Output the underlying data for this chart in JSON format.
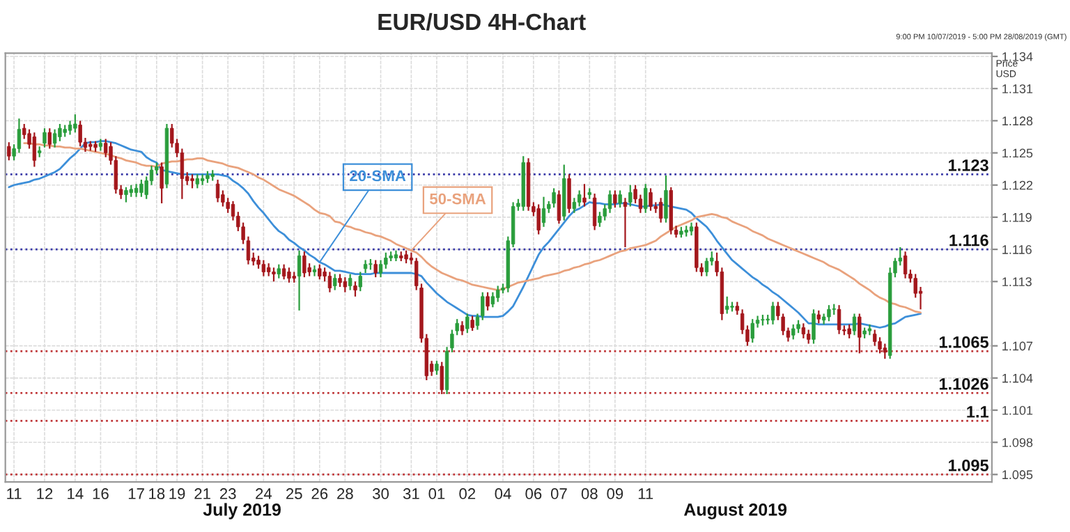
{
  "chart_data": {
    "type": "candlestick",
    "title": "EUR/USD 4H-Chart",
    "subtitle": "9:00 PM 10/07/2019 - 5:00 PM 28/08/2019 (GMT)",
    "ylabel": "Price\nUSD",
    "categories": [
      null,
      "11",
      null,
      null,
      null,
      null,
      null,
      "12",
      null,
      null,
      null,
      null,
      null,
      "14",
      null,
      null,
      null,
      null,
      "16",
      null,
      null,
      null,
      null,
      null,
      null,
      "17",
      null,
      null,
      null,
      "18",
      null,
      null,
      null,
      "19",
      null,
      null,
      null,
      null,
      "21",
      null,
      null,
      null,
      null,
      "23",
      null,
      null,
      null,
      null,
      null,
      null,
      "24",
      null,
      null,
      null,
      null,
      null,
      "25",
      null,
      null,
      null,
      null,
      "26",
      null,
      null,
      null,
      null,
      "28",
      null,
      null,
      null,
      null,
      null,
      null,
      "30",
      null,
      null,
      null,
      null,
      null,
      "31",
      null,
      null,
      null,
      null,
      "01",
      null,
      null,
      null,
      null,
      null,
      "02",
      null,
      null,
      null,
      null,
      null,
      null,
      "04",
      null,
      null,
      null,
      null,
      null,
      "06",
      null,
      null,
      null,
      null,
      "07",
      null,
      null,
      null,
      null,
      null,
      "08",
      null,
      null,
      null,
      null,
      "09",
      null,
      null,
      null,
      null,
      null,
      "11",
      null,
      null,
      null,
      null,
      null,
      null,
      null,
      null,
      null,
      null,
      null,
      null,
      null,
      null,
      null,
      null,
      null,
      null,
      null,
      null,
      null,
      null,
      null,
      null,
      null,
      null,
      null,
      null,
      null,
      null,
      null,
      null,
      null,
      null,
      null,
      null,
      null,
      null,
      null,
      null,
      null,
      null,
      null,
      null,
      null,
      null,
      null,
      null,
      null,
      null,
      null,
      null,
      null,
      null
    ],
    "ohlc": [
      [
        1.1256,
        1.126,
        1.1243,
        1.1247
      ],
      [
        1.1247,
        1.1258,
        1.1243,
        1.1254
      ],
      [
        1.1254,
        1.1282,
        1.125,
        1.1272
      ],
      [
        1.1273,
        1.1277,
        1.1263,
        1.1267
      ],
      [
        1.1268,
        1.1272,
        1.1254,
        1.1258
      ],
      [
        1.1265,
        1.1269,
        1.1237,
        1.1243
      ],
      [
        1.125,
        1.1256,
        1.1246,
        1.1252
      ],
      [
        1.1259,
        1.1273,
        1.1255,
        1.1269
      ],
      [
        1.1269,
        1.1273,
        1.1254,
        1.1258
      ],
      [
        1.1259,
        1.1272,
        1.1255,
        1.1268
      ],
      [
        1.1265,
        1.1277,
        1.1261,
        1.1273
      ],
      [
        1.1269,
        1.1276,
        1.1265,
        1.1272
      ],
      [
        1.1271,
        1.128,
        1.1267,
        1.1276
      ],
      [
        1.1273,
        1.1286,
        1.1269,
        1.1277
      ],
      [
        1.1276,
        1.128,
        1.1256,
        1.126
      ],
      [
        1.126,
        1.1264,
        1.1251,
        1.1255
      ],
      [
        1.1258,
        1.1261,
        1.1252,
        1.1256
      ],
      [
        1.1258,
        1.1261,
        1.1251,
        1.1255
      ],
      [
        1.1256,
        1.1263,
        1.1252,
        1.1259
      ],
      [
        1.1259,
        1.1263,
        1.1246,
        1.125
      ],
      [
        1.1256,
        1.126,
        1.1239,
        1.1243
      ],
      [
        1.1243,
        1.1247,
        1.1212,
        1.1216
      ],
      [
        1.1216,
        1.122,
        1.1207,
        1.1211
      ],
      [
        1.1211,
        1.1218,
        1.1204,
        1.1215
      ],
      [
        1.1213,
        1.122,
        1.1209,
        1.1216
      ],
      [
        1.1213,
        1.1221,
        1.1209,
        1.1217
      ],
      [
        1.1213,
        1.1225,
        1.1209,
        1.1221
      ],
      [
        1.1211,
        1.1228,
        1.1207,
        1.1224
      ],
      [
        1.1224,
        1.1238,
        1.122,
        1.1234
      ],
      [
        1.1234,
        1.1241,
        1.123,
        1.1237
      ],
      [
        1.1237,
        1.1241,
        1.1203,
        1.1217
      ],
      [
        1.1221,
        1.1277,
        1.1217,
        1.1273
      ],
      [
        1.1273,
        1.1277,
        1.1255,
        1.1259
      ],
      [
        1.1259,
        1.1263,
        1.1246,
        1.125
      ],
      [
        1.125,
        1.1254,
        1.1207,
        1.1226
      ],
      [
        1.1228,
        1.1232,
        1.122,
        1.1224
      ],
      [
        1.1226,
        1.123,
        1.1217,
        1.1224
      ],
      [
        1.1221,
        1.123,
        1.1217,
        1.1226
      ],
      [
        1.1224,
        1.123,
        1.122,
        1.1226
      ],
      [
        1.1226,
        1.1233,
        1.1222,
        1.1229
      ],
      [
        1.1228,
        1.1234,
        1.1224,
        1.123
      ],
      [
        1.1221,
        1.1225,
        1.1204,
        1.1208
      ],
      [
        1.1211,
        1.1215,
        1.12,
        1.1204
      ],
      [
        1.1204,
        1.1208,
        1.1194,
        1.1198
      ],
      [
        1.1202,
        1.1205,
        1.1187,
        1.1191
      ],
      [
        1.1191,
        1.1195,
        1.1177,
        1.1181
      ],
      [
        1.1181,
        1.1185,
        1.1165,
        1.1169
      ],
      [
        1.1168,
        1.1172,
        1.1146,
        1.115
      ],
      [
        1.1152,
        1.1157,
        1.1145,
        1.1149
      ],
      [
        1.115,
        1.1154,
        1.1142,
        1.1146
      ],
      [
        1.1146,
        1.115,
        1.1135,
        1.1139
      ],
      [
        1.1143,
        1.1147,
        1.1135,
        1.1139
      ],
      [
        1.1139,
        1.1143,
        1.113,
        1.1137
      ],
      [
        1.1137,
        1.1146,
        1.1133,
        1.1142
      ],
      [
        1.1142,
        1.1146,
        1.1132,
        1.1135
      ],
      [
        1.1139,
        1.1143,
        1.1129,
        1.1133
      ],
      [
        1.1135,
        1.1139,
        1.1129,
        1.1133
      ],
      [
        1.1135,
        1.1159,
        1.1103,
        1.1154
      ],
      [
        1.1154,
        1.1158,
        1.1134,
        1.1138
      ],
      [
        1.1143,
        1.1147,
        1.1135,
        1.1139
      ],
      [
        1.1139,
        1.1145,
        1.1135,
        1.1141
      ],
      [
        1.1142,
        1.1146,
        1.1132,
        1.1135
      ],
      [
        1.1139,
        1.1143,
        1.113,
        1.1135
      ],
      [
        1.1135,
        1.1139,
        1.112,
        1.1124
      ],
      [
        1.1126,
        1.1137,
        1.1122,
        1.1133
      ],
      [
        1.1133,
        1.1137,
        1.1125,
        1.1129
      ],
      [
        1.113,
        1.1134,
        1.112,
        1.1125
      ],
      [
        1.1126,
        1.1137,
        1.1122,
        1.1133
      ],
      [
        1.1126,
        1.113,
        1.1116,
        1.1122
      ],
      [
        1.1125,
        1.1139,
        1.1121,
        1.1135
      ],
      [
        1.1142,
        1.115,
        1.1138,
        1.1146
      ],
      [
        1.1146,
        1.1151,
        1.1141,
        1.1146
      ],
      [
        1.1146,
        1.115,
        1.1134,
        1.1138
      ],
      [
        1.1138,
        1.115,
        1.1134,
        1.1146
      ],
      [
        1.1146,
        1.1157,
        1.1142,
        1.1152
      ],
      [
        1.1152,
        1.1158,
        1.1149,
        1.1154
      ],
      [
        1.1152,
        1.1159,
        1.1149,
        1.1155
      ],
      [
        1.1154,
        1.1158,
        1.1149,
        1.1152
      ],
      [
        1.1155,
        1.1159,
        1.1147,
        1.1151
      ],
      [
        1.1152,
        1.1157,
        1.1146,
        1.115
      ],
      [
        1.1149,
        1.1152,
        1.1122,
        1.1126
      ],
      [
        1.1124,
        1.1128,
        1.1073,
        1.1077
      ],
      [
        1.1077,
        1.1081,
        1.1038,
        1.1042
      ],
      [
        1.1053,
        1.1056,
        1.1042,
        1.1046
      ],
      [
        1.1047,
        1.1056,
        1.1043,
        1.1053
      ],
      [
        1.1051,
        1.1055,
        1.1025,
        1.1029
      ],
      [
        1.1029,
        1.1069,
        1.1025,
        1.1065
      ],
      [
        1.1068,
        1.1085,
        1.1064,
        1.1081
      ],
      [
        1.1084,
        1.1095,
        1.108,
        1.1091
      ],
      [
        1.1089,
        1.1093,
        1.108,
        1.1084
      ],
      [
        1.1086,
        1.11,
        1.1082,
        1.1097
      ],
      [
        1.1094,
        1.1098,
        1.1084,
        1.1087
      ],
      [
        1.1089,
        1.11,
        1.1085,
        1.1097
      ],
      [
        1.1098,
        1.112,
        1.1094,
        1.1116
      ],
      [
        1.1116,
        1.112,
        1.1103,
        1.1107
      ],
      [
        1.1109,
        1.112,
        1.1106,
        1.1116
      ],
      [
        1.1115,
        1.1126,
        1.1111,
        1.1122
      ],
      [
        1.1122,
        1.1128,
        1.1119,
        1.1124
      ],
      [
        1.1124,
        1.1172,
        1.112,
        1.1168
      ],
      [
        1.1165,
        1.1204,
        1.1162,
        1.12
      ],
      [
        1.12,
        1.1207,
        1.1196,
        1.1203
      ],
      [
        1.12,
        1.1247,
        1.1196,
        1.1241
      ],
      [
        1.1241,
        1.1245,
        1.1196,
        1.12
      ],
      [
        1.12,
        1.1204,
        1.1191,
        1.1195
      ],
      [
        1.1198,
        1.1202,
        1.1174,
        1.1178
      ],
      [
        1.1185,
        1.1209,
        1.1181,
        1.1198
      ],
      [
        1.1198,
        1.1205,
        1.1194,
        1.1202
      ],
      [
        1.1203,
        1.1217,
        1.1199,
        1.1213
      ],
      [
        1.1211,
        1.1215,
        1.1184,
        1.1187
      ],
      [
        1.1191,
        1.1239,
        1.1187,
        1.1226
      ],
      [
        1.1226,
        1.123,
        1.1194,
        1.1198
      ],
      [
        1.1198,
        1.1208,
        1.1194,
        1.1204
      ],
      [
        1.1204,
        1.1215,
        1.12,
        1.1211
      ],
      [
        1.1208,
        1.1221,
        1.12,
        1.1204
      ],
      [
        1.1211,
        1.1217,
        1.1207,
        1.1213
      ],
      [
        1.1208,
        1.1212,
        1.1178,
        1.1182
      ],
      [
        1.1185,
        1.1195,
        1.1181,
        1.1191
      ],
      [
        1.1191,
        1.1202,
        1.1187,
        1.1198
      ],
      [
        1.1198,
        1.1215,
        1.1194,
        1.1211
      ],
      [
        1.1211,
        1.1215,
        1.1199,
        1.1203
      ],
      [
        1.1203,
        1.1215,
        1.1199,
        1.1211
      ],
      [
        1.1204,
        1.1208,
        1.1162,
        1.12
      ],
      [
        1.1204,
        1.122,
        1.12,
        1.1213
      ],
      [
        1.1216,
        1.122,
        1.1203,
        1.1207
      ],
      [
        1.1207,
        1.1211,
        1.1194,
        1.1198
      ],
      [
        1.1198,
        1.1221,
        1.1194,
        1.1217
      ],
      [
        1.1213,
        1.1217,
        1.1196,
        1.12
      ],
      [
        1.12,
        1.1204,
        1.1194,
        1.1198
      ],
      [
        1.1204,
        1.1208,
        1.1185,
        1.1189
      ],
      [
        1.1189,
        1.1229,
        1.1185,
        1.1215
      ],
      [
        1.1215,
        1.1218,
        1.1174,
        1.1178
      ],
      [
        1.1178,
        1.1182,
        1.1171,
        1.1174
      ],
      [
        1.1174,
        1.1181,
        1.1171,
        1.1177
      ],
      [
        1.1176,
        1.1182,
        1.1172,
        1.1178
      ],
      [
        1.1177,
        1.1185,
        1.1173,
        1.1181
      ],
      [
        1.1181,
        1.1185,
        1.1139,
        1.1143
      ],
      [
        1.1143,
        1.1147,
        1.1135,
        1.1139
      ],
      [
        1.1139,
        1.1152,
        1.1135,
        1.1149
      ],
      [
        1.1149,
        1.1158,
        1.1145,
        1.1152
      ],
      [
        1.1149,
        1.1157,
        1.1135,
        1.1139
      ],
      [
        1.1139,
        1.1143,
        1.1094,
        1.11
      ],
      [
        1.1104,
        1.1116,
        1.11,
        1.1107
      ],
      [
        1.1106,
        1.1111,
        1.1102,
        1.1107
      ],
      [
        1.1107,
        1.1111,
        1.1099,
        1.1103
      ],
      [
        1.11,
        1.1104,
        1.1081,
        1.1085
      ],
      [
        1.1085,
        1.1089,
        1.107,
        1.1074
      ],
      [
        1.1077,
        1.1095,
        1.1073,
        1.1091
      ],
      [
        1.1091,
        1.1098,
        1.1087,
        1.1094
      ],
      [
        1.1094,
        1.1099,
        1.1089,
        1.1094
      ],
      [
        1.1094,
        1.1099,
        1.109,
        1.1095
      ],
      [
        1.1094,
        1.1111,
        1.109,
        1.1107
      ],
      [
        1.1107,
        1.1111,
        1.1094,
        1.1098
      ],
      [
        1.1097,
        1.11,
        1.108,
        1.1084
      ],
      [
        1.1084,
        1.1087,
        1.1074,
        1.1078
      ],
      [
        1.108,
        1.109,
        1.1076,
        1.1086
      ],
      [
        1.1086,
        1.1094,
        1.1082,
        1.109
      ],
      [
        1.1087,
        1.1091,
        1.1077,
        1.1081
      ],
      [
        1.1081,
        1.1085,
        1.1072,
        1.1076
      ],
      [
        1.1076,
        1.1104,
        1.1072,
        1.11
      ],
      [
        1.1099,
        1.1103,
        1.1091,
        1.1095
      ],
      [
        1.1094,
        1.11,
        1.109,
        1.1097
      ],
      [
        1.1097,
        1.1108,
        1.1093,
        1.1104
      ],
      [
        1.1104,
        1.1109,
        1.1099,
        1.1104
      ],
      [
        1.1104,
        1.1108,
        1.1081,
        1.1085
      ],
      [
        1.1085,
        1.1089,
        1.108,
        1.1084
      ],
      [
        1.1086,
        1.109,
        1.1077,
        1.1081
      ],
      [
        1.1084,
        1.11,
        1.108,
        1.1097
      ],
      [
        1.1097,
        1.11,
        1.1063,
        1.1078
      ],
      [
        1.1081,
        1.1087,
        1.1077,
        1.1084
      ],
      [
        1.1084,
        1.109,
        1.108,
        1.1086
      ],
      [
        1.1081,
        1.1085,
        1.107,
        1.1074
      ],
      [
        1.1074,
        1.1078,
        1.1063,
        1.1067
      ],
      [
        1.1068,
        1.1072,
        1.1058,
        1.1064
      ],
      [
        1.1061,
        1.1143,
        1.1058,
        1.1138
      ],
      [
        1.1138,
        1.1152,
        1.1134,
        1.1149
      ],
      [
        1.1149,
        1.1162,
        1.1145,
        1.1152
      ],
      [
        1.1154,
        1.1158,
        1.1133,
        1.1137
      ],
      [
        1.1137,
        1.1141,
        1.1129,
        1.1133
      ],
      [
        1.1133,
        1.1137,
        1.1115,
        1.1119
      ],
      [
        1.1121,
        1.1125,
        1.1104,
        1.1119
      ]
    ],
    "colors": [
      "#a3171c",
      "#2a9d3c",
      "#2a9d3c",
      "#a3171c",
      "#a3171c",
      "#a3171c",
      "#2a9d3c",
      "#2a9d3c",
      "#a3171c",
      "#2a9d3c",
      "#2a9d3c",
      "#2a9d3c",
      "#2a9d3c",
      "#2a9d3c",
      "#a3171c",
      "#a3171c",
      "#a3171c",
      "#a3171c",
      "#2a9d3c",
      "#a3171c",
      "#a3171c",
      "#a3171c",
      "#a3171c",
      "#2a9d3c",
      "#2a9d3c",
      "#2a9d3c",
      "#2a9d3c",
      "#2a9d3c",
      "#2a9d3c",
      "#2a9d3c",
      "#a3171c",
      "#2a9d3c",
      "#a3171c",
      "#a3171c",
      "#a3171c",
      "#a3171c",
      "#a3171c",
      "#2a9d3c",
      "#2a9d3c",
      "#2a9d3c",
      "#2a9d3c",
      "#a3171c",
      "#a3171c",
      "#a3171c",
      "#a3171c",
      "#a3171c",
      "#a3171c",
      "#a3171c",
      "#a3171c",
      "#a3171c",
      "#a3171c",
      "#a3171c",
      "#a3171c",
      "#2a9d3c",
      "#a3171c",
      "#a3171c",
      "#a3171c",
      "#2a9d3c",
      "#a3171c",
      "#a3171c",
      "#2a9d3c",
      "#a3171c",
      "#a3171c",
      "#a3171c",
      "#2a9d3c",
      "#a3171c",
      "#a3171c",
      "#2a9d3c",
      "#a3171c",
      "#2a9d3c",
      "#2a9d3c",
      "#2a9d3c",
      "#a3171c",
      "#2a9d3c",
      "#2a9d3c",
      "#2a9d3c",
      "#2a9d3c",
      "#a3171c",
      "#a3171c",
      "#a3171c",
      "#a3171c",
      "#a3171c",
      "#a3171c",
      "#a3171c",
      "#2a9d3c",
      "#a3171c",
      "#2a9d3c",
      "#2a9d3c",
      "#2a9d3c",
      "#a3171c",
      "#2a9d3c",
      "#a3171c",
      "#2a9d3c",
      "#2a9d3c",
      "#a3171c",
      "#2a9d3c",
      "#2a9d3c",
      "#2a9d3c",
      "#2a9d3c",
      "#2a9d3c",
      "#2a9d3c",
      "#2a9d3c",
      "#a3171c",
      "#a3171c",
      "#a3171c",
      "#2a9d3c",
      "#2a9d3c",
      "#2a9d3c",
      "#a3171c",
      "#2a9d3c",
      "#a3171c",
      "#2a9d3c",
      "#2a9d3c",
      "#a3171c",
      "#2a9d3c",
      "#a3171c",
      "#2a9d3c",
      "#2a9d3c",
      "#2a9d3c",
      "#a3171c",
      "#2a9d3c",
      "#a3171c",
      "#2a9d3c",
      "#a3171c",
      "#a3171c",
      "#2a9d3c",
      "#a3171c",
      "#a3171c",
      "#a3171c",
      "#2a9d3c",
      "#a3171c",
      "#a3171c",
      "#2a9d3c",
      "#2a9d3c",
      "#2a9d3c",
      "#a3171c",
      "#a3171c",
      "#2a9d3c",
      "#2a9d3c",
      "#a3171c",
      "#a3171c",
      "#2a9d3c",
      "#2a9d3c",
      "#a3171c",
      "#a3171c",
      "#a3171c",
      "#2a9d3c",
      "#2a9d3c",
      "#2a9d3c",
      "#2a9d3c",
      "#2a9d3c",
      "#a3171c",
      "#a3171c",
      "#a3171c",
      "#2a9d3c",
      "#2a9d3c",
      "#a3171c",
      "#a3171c",
      "#2a9d3c",
      "#a3171c",
      "#2a9d3c",
      "#2a9d3c",
      "#2a9d3c",
      "#a3171c",
      "#a3171c",
      "#a3171c",
      "#2a9d3c",
      "#a3171c",
      "#2a9d3c",
      "#2a9d3c",
      "#a3171c",
      "#a3171c",
      "#a3171c",
      "#2a9d3c",
      "#2a9d3c",
      "#2a9d3c",
      "#a3171c",
      "#a3171c",
      "#a3171c",
      "#a3171c"
    ],
    "series": [
      {
        "type": "line",
        "name": "20-SMA",
        "color": "#3d8fd9",
        "values": [
          1.1218,
          1.122,
          1.1221,
          1.1222,
          1.1223,
          1.1225,
          1.1226,
          1.1228,
          1.123,
          1.1232,
          1.1235,
          1.124,
          1.1245,
          1.1249,
          1.1254,
          1.1259,
          1.126,
          1.126,
          1.1261,
          1.1261,
          1.126,
          1.1259,
          1.1257,
          1.1255,
          1.1253,
          1.1252,
          1.1251,
          1.1246,
          1.1243,
          1.1241,
          1.1234,
          1.1233,
          1.1232,
          1.1231,
          1.123,
          1.123,
          1.123,
          1.123,
          1.123,
          1.123,
          1.123,
          1.123,
          1.1229,
          1.1228,
          1.1224,
          1.1221,
          1.1217,
          1.1212,
          1.1205,
          1.1199,
          1.1194,
          1.1188,
          1.1182,
          1.1177,
          1.1174,
          1.1169,
          1.1166,
          1.1162,
          1.1159,
          1.1155,
          1.1152,
          1.1148,
          1.1146,
          1.1143,
          1.114,
          1.114,
          1.1139,
          1.1138,
          1.1137,
          1.1137,
          1.1137,
          1.1137,
          1.1138,
          1.1138,
          1.1138,
          1.1138,
          1.1138,
          1.1138,
          1.1138,
          1.1138,
          1.1137,
          1.1135,
          1.1129,
          1.1124,
          1.1119,
          1.1115,
          1.1111,
          1.1108,
          1.1105,
          1.1102,
          1.1099,
          1.1098,
          1.1098,
          1.1097,
          1.1097,
          1.1097,
          1.1097,
          1.1098,
          1.1102,
          1.1107,
          1.1116,
          1.1125,
          1.1135,
          1.1145,
          1.1155,
          1.1162,
          1.1167,
          1.1173,
          1.1179,
          1.1185,
          1.1191,
          1.1196,
          1.1198,
          1.1201,
          1.1204,
          1.1203,
          1.1203,
          1.1202,
          1.1202,
          1.1202,
          1.1203,
          1.1203,
          1.1202,
          1.1201,
          1.12,
          1.12,
          1.1201,
          1.1201,
          1.1202,
          1.1201,
          1.12,
          1.1199,
          1.1198,
          1.1197,
          1.1194,
          1.1189,
          1.1185,
          1.1181,
          1.1175,
          1.1168,
          1.1162,
          1.1156,
          1.115,
          1.1146,
          1.1142,
          1.1138,
          1.1134,
          1.1131,
          1.1127,
          1.1124,
          1.112,
          1.1117,
          1.1113,
          1.1109,
          1.1105,
          1.1101,
          1.1096,
          1.1091,
          1.1091,
          1.109,
          1.109,
          1.109,
          1.109,
          1.109,
          1.109,
          1.109,
          1.109,
          1.1091,
          1.109,
          1.1089,
          1.1088,
          1.1087,
          1.1088,
          1.109,
          1.1091,
          1.1094,
          1.1097,
          1.1098,
          1.1099,
          1.11
        ]
      },
      {
        "type": "line",
        "name": "50-SMA",
        "color": "#e9a27d",
        "values": [
          null,
          null,
          null,
          1.1259,
          1.1259,
          1.1258,
          1.1258,
          1.1257,
          1.1257,
          1.1256,
          1.1256,
          1.1255,
          1.1255,
          1.1254,
          1.1254,
          1.1253,
          1.1252,
          1.1251,
          1.125,
          1.1249,
          1.1248,
          1.1246,
          1.1245,
          1.1243,
          1.1242,
          1.1241,
          1.1239,
          1.1238,
          1.1238,
          1.1237,
          1.124,
          1.1241,
          1.1242,
          1.1242,
          1.1243,
          1.1244,
          1.1244,
          1.1245,
          1.1245,
          1.1243,
          1.1242,
          1.1241,
          1.124,
          1.1238,
          1.1237,
          1.1236,
          1.1234,
          1.1232,
          1.123,
          1.1227,
          1.1225,
          1.1222,
          1.1219,
          1.1216,
          1.1214,
          1.1212,
          1.121,
          1.1207,
          1.1204,
          1.1201,
          1.1197,
          1.1194,
          1.1193,
          1.1191,
          1.1186,
          1.1185,
          1.1182,
          1.1181,
          1.1179,
          1.1178,
          1.1176,
          1.1175,
          1.1173,
          1.1172,
          1.117,
          1.1168,
          1.1165,
          1.1163,
          1.1161,
          1.1159,
          1.1157,
          1.1153,
          1.1148,
          1.1144,
          1.1141,
          1.1138,
          1.1136,
          1.1134,
          1.1132,
          1.1131,
          1.1129,
          1.1127,
          1.1126,
          1.1125,
          1.1124,
          1.1123,
          1.1122,
          1.1123,
          1.1125,
          1.1127,
          1.1129,
          1.113,
          1.1131,
          1.1132,
          1.1133,
          1.1135,
          1.1136,
          1.1137,
          1.1138,
          1.114,
          1.1141,
          1.1143,
          1.1144,
          1.1146,
          1.1147,
          1.1149,
          1.115,
          1.1152,
          1.1154,
          1.1156,
          1.1158,
          1.1159,
          1.1161,
          1.1162,
          1.1163,
          1.1164,
          1.1166,
          1.1168,
          1.1172,
          1.1175,
          1.1178,
          1.1181,
          1.1183,
          1.1185,
          1.1187,
          1.119,
          1.1191,
          1.1192,
          1.1193,
          1.1192,
          1.119,
          1.1189,
          1.1186,
          1.1184,
          1.1182,
          1.118,
          1.1177,
          1.1175,
          1.1173,
          1.117,
          1.1168,
          1.1166,
          1.1164,
          1.1162,
          1.116,
          1.1158,
          1.1156,
          1.1154,
          1.1152,
          1.115,
          1.1148,
          1.1145,
          1.1143,
          1.1141,
          1.1138,
          1.1135,
          1.1132,
          1.1128,
          1.1125,
          1.1122,
          1.1118,
          1.1115,
          1.1113,
          1.111,
          1.1109,
          1.1107,
          1.1106,
          1.1104,
          1.1102,
          1.1101
        ]
      }
    ],
    "ref_lines": [
      {
        "axis": "y",
        "value": 1.123,
        "label": "1.123",
        "color": "#3a3aa8",
        "line_style": "dotted"
      },
      {
        "axis": "y",
        "value": 1.116,
        "label": "1.116",
        "color": "#3a3aa8",
        "line_style": "dotted"
      },
      {
        "axis": "y",
        "value": 1.1065,
        "label": "1.1065",
        "color": "#c0393b",
        "line_style": "dotted"
      },
      {
        "axis": "y",
        "value": 1.1026,
        "label": "1.1026",
        "color": "#c0393b",
        "line_style": "dotted"
      },
      {
        "axis": "y",
        "value": 1.1,
        "label": "1.1",
        "color": "#c0393b",
        "line_style": "dotted"
      },
      {
        "axis": "y",
        "value": 1.095,
        "label": "1.095",
        "color": "#c0393b",
        "line_style": "dotted"
      }
    ],
    "annotations": [
      "July 2019",
      "August 2019"
    ],
    "ylim": [
      1.0943,
      1.1343
    ],
    "yticks": [
      1.095,
      1.098,
      1.101,
      1.104,
      1.107,
      1.113,
      1.116,
      1.119,
      1.122,
      1.125,
      1.128,
      1.131,
      1.134
    ],
    "grid": true
  }
}
